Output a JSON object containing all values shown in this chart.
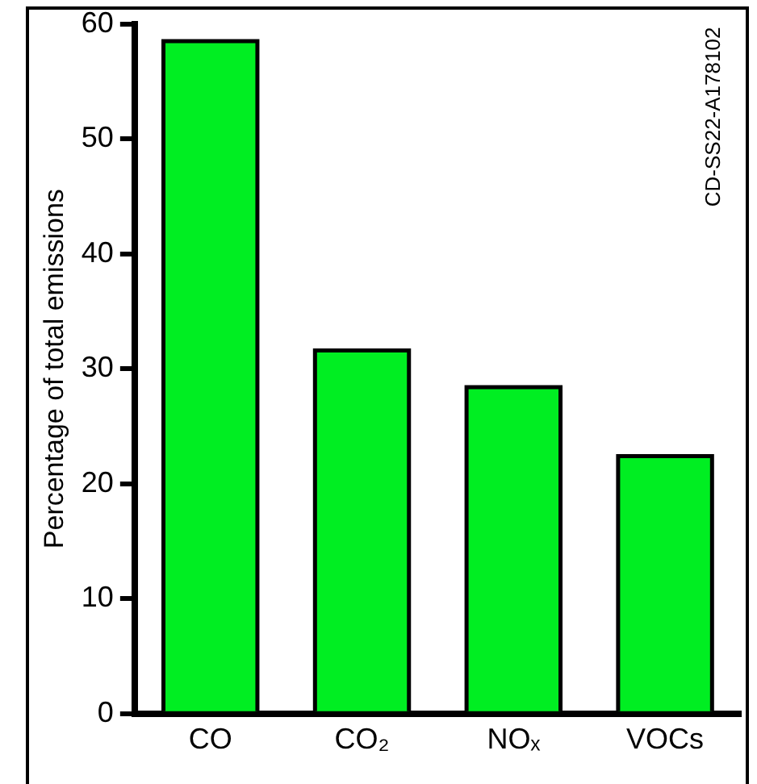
{
  "chart_data": {
    "type": "bar",
    "ylabel": "Percentage of total emissions",
    "categories": [
      "CO",
      "CO₂",
      "NOₓ",
      "VOCs"
    ],
    "values": [
      58.5,
      31.6,
      28.4,
      22.4
    ],
    "color": "#00ee22",
    "ylim": [
      0,
      60
    ],
    "yticks": [
      0,
      10,
      20,
      30,
      40,
      50,
      60
    ],
    "grid": false,
    "legend": false,
    "annotations": [
      "CD-SS22-A178102"
    ]
  }
}
